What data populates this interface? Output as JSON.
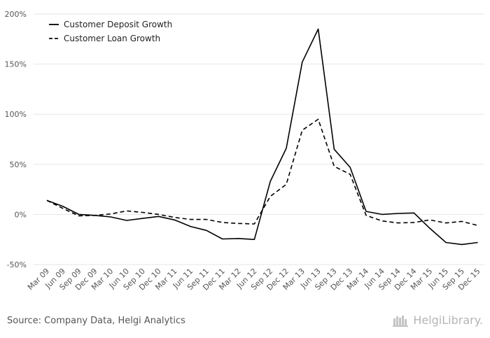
{
  "chart_data": {
    "type": "line",
    "categories": [
      "Mar 09",
      "Jun 09",
      "Sep 09",
      "Dec 09",
      "Mar 10",
      "Jun 10",
      "Sep 10",
      "Dec 10",
      "Mar 11",
      "Jun 11",
      "Sep 11",
      "Dec 11",
      "Mar 12",
      "Jun 12",
      "Sep 12",
      "Dec 12",
      "Mar 13",
      "Jun 13",
      "Sep 13",
      "Dec 13",
      "Mar 14",
      "Jun 14",
      "Sep 14",
      "Dec 14",
      "Mar 15",
      "Jun 15",
      "Sep 15",
      "Dec 15"
    ],
    "series": [
      {
        "name": "Customer Deposit Growth",
        "style": "solid",
        "color": "#000000",
        "values": [
          14,
          8,
          0,
          -1,
          -2.5,
          -6,
          -4,
          -2,
          -5.5,
          -12,
          -16,
          -24.5,
          -24,
          -25,
          33,
          66,
          152,
          185,
          65,
          47,
          3,
          0,
          1,
          1.5,
          -14,
          -28,
          -30,
          -28
        ]
      },
      {
        "name": "Customer Loan Growth",
        "style": "dashed",
        "color": "#000000",
        "values": [
          14,
          6,
          -1.5,
          -1,
          0.5,
          3.5,
          2,
          0,
          -3,
          -5,
          -5,
          -8,
          -9,
          -9.5,
          18,
          30,
          84,
          95,
          48,
          40,
          -1,
          -6.5,
          -8.5,
          -8,
          -5.5,
          -8.5,
          -7,
          -11
        ]
      }
    ],
    "title": "",
    "xlabel": "",
    "ylabel": "",
    "ylim": [
      -50,
      200
    ],
    "yticks": [
      -50,
      0,
      50,
      100,
      150,
      200
    ],
    "ytick_labels": [
      "-50%",
      "0%",
      "50%",
      "100%",
      "150%",
      "200%"
    ],
    "grid": true,
    "legend": "top-left"
  },
  "footer": {
    "source": "Source: Company Data, Helgi Analytics",
    "brand": "HelgiLibrary."
  }
}
